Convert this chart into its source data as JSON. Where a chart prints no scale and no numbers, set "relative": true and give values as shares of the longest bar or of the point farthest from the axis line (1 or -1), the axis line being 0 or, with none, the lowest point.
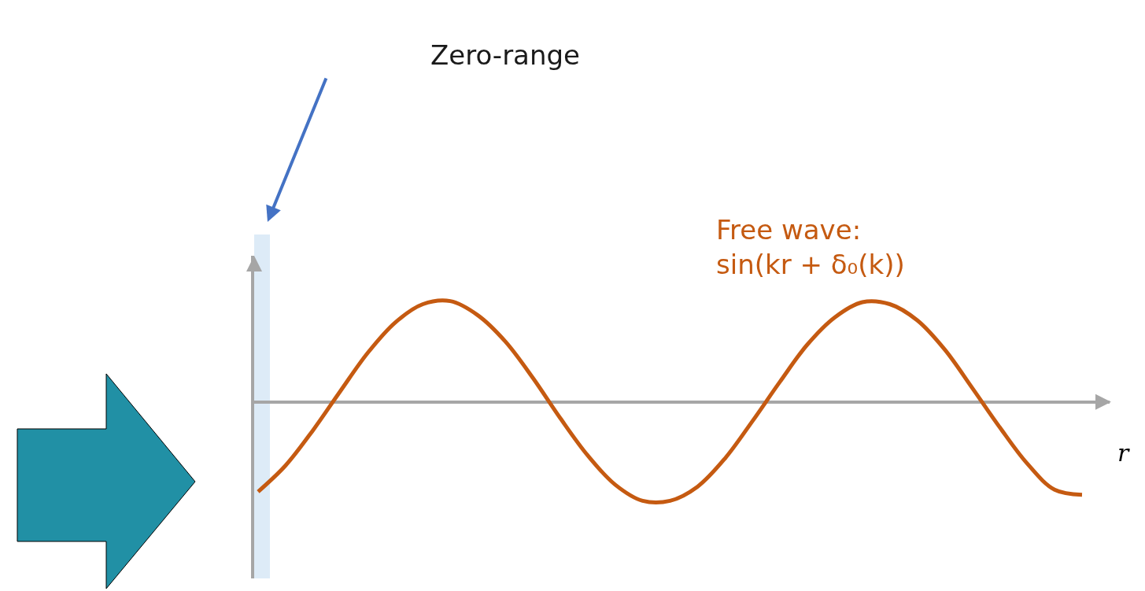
{
  "chart_data": {
    "type": "line",
    "relative": true,
    "xlabel": "r",
    "categories": [
      null,
      null,
      null,
      null,
      null,
      null,
      null,
      null,
      null,
      null,
      null,
      null,
      null,
      null,
      null,
      null,
      null,
      null,
      null,
      null,
      null,
      null,
      null,
      null,
      null,
      null,
      null,
      null,
      null,
      null,
      null
    ],
    "series": [
      {
        "color": "#c55a11",
        "values": [
          -0.89,
          -0.63,
          -0.28,
          0.11,
          0.49,
          0.79,
          0.97,
          1,
          0.86,
          0.6,
          0.24,
          -0.16,
          -0.53,
          -0.82,
          -0.98,
          -0.98,
          -0.84,
          -0.56,
          -0.19,
          0.2,
          0.57,
          0.84,
          0.99,
          0.97,
          0.81,
          0.52,
          0.14,
          -0.25,
          -0.61,
          -0.87,
          -0.92
        ]
      }
    ],
    "annotations": [
      "Zero-range",
      "Free wave:\nsin(kr + δ₀(k))"
    ]
  }
}
